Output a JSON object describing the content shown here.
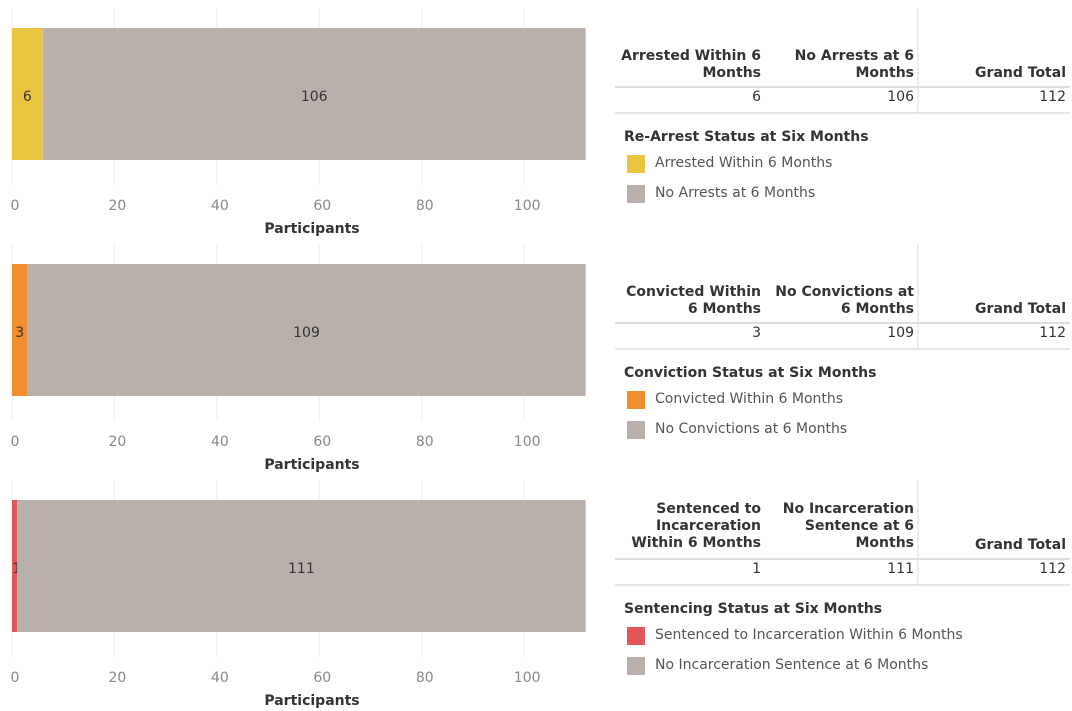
{
  "chart_data": [
    {
      "type": "stacked_bar",
      "xlabel": "Participants",
      "xlim": [
        0,
        115
      ],
      "xticks": [
        0,
        20,
        40,
        60,
        80,
        100
      ],
      "grid": true,
      "legend_title": "Re-Arrest Status at Six Months",
      "series": [
        {
          "name": "Arrested Within 6 Months",
          "color": "#e9c43f",
          "values": [
            6
          ]
        },
        {
          "name": "No Arrests at 6 Months",
          "color": "#bab0ab",
          "values": [
            106
          ]
        }
      ],
      "total_label": "Grand Total",
      "total": 112
    },
    {
      "type": "stacked_bar",
      "xlabel": "Participants",
      "xlim": [
        0,
        115
      ],
      "xticks": [
        0,
        20,
        40,
        60,
        80,
        100
      ],
      "grid": true,
      "legend_title": "Conviction Status at Six Months",
      "series": [
        {
          "name": "Convicted Within 6 Months",
          "color": "#f28e2b",
          "values": [
            3
          ]
        },
        {
          "name": "No Convictions at 6 Months",
          "color": "#bab0ab",
          "values": [
            109
          ]
        }
      ],
      "total_label": "Grand Total",
      "total": 112
    },
    {
      "type": "stacked_bar",
      "xlabel": "Participants",
      "xlim": [
        0,
        115
      ],
      "xticks": [
        0,
        20,
        40,
        60,
        80,
        100
      ],
      "grid": true,
      "legend_title": "Sentencing Status at Six Months",
      "series": [
        {
          "name": "Sentenced to Incarceration Within 6 Months",
          "color": "#e15759",
          "values": [
            1
          ]
        },
        {
          "name": "No Incarceration Sentence at 6 Months",
          "color": "#bab0ab",
          "values": [
            111
          ]
        }
      ],
      "total_label": "Grand Total",
      "total": 112
    }
  ]
}
